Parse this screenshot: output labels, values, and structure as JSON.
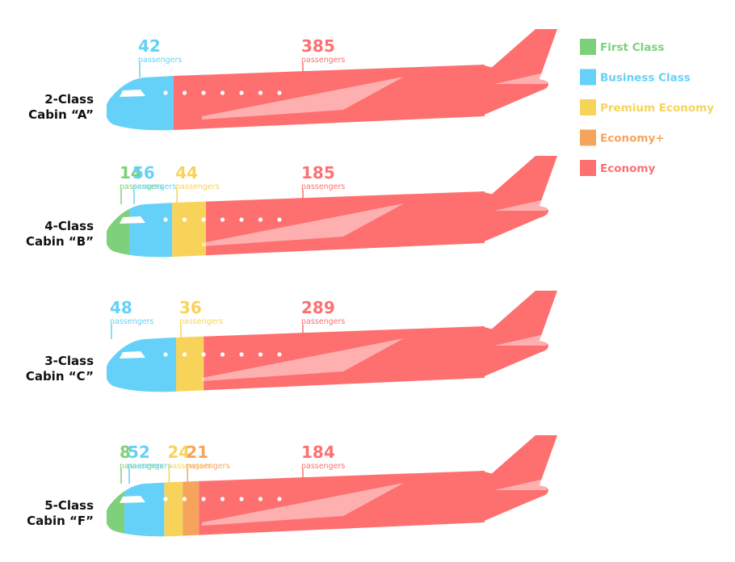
{
  "legend": {
    "items": [
      {
        "label": "First Class",
        "color": "#7ed07a"
      },
      {
        "label": "Business Class",
        "color": "#66d1f8"
      },
      {
        "label": "Premium Economy",
        "color": "#f8d35a"
      },
      {
        "label": "Economy+",
        "color": "#f6a45c"
      },
      {
        "label": "Economy",
        "color": "#fe7070"
      }
    ]
  },
  "unit_label": "passengers",
  "chart_data": {
    "type": "bar",
    "categories": [
      "First Class",
      "Business Class",
      "Premium Economy",
      "Economy+",
      "Economy"
    ],
    "planes": [
      {
        "label_line1": "2-Class",
        "label_line2": "Cabin “A”",
        "segments": [
          {
            "class": "Business Class",
            "value": 42
          },
          {
            "class": "Economy",
            "value": 385
          }
        ]
      },
      {
        "label_line1": "4-Class",
        "label_line2": "Cabin “B”",
        "segments": [
          {
            "class": "First Class",
            "value": 14
          },
          {
            "class": "Business Class",
            "value": 56
          },
          {
            "class": "Premium Economy",
            "value": 44
          },
          {
            "class": "Economy",
            "value": 185
          }
        ]
      },
      {
        "label_line1": "3-Class",
        "label_line2": "Cabin “C”",
        "segments": [
          {
            "class": "Business Class",
            "value": 48
          },
          {
            "class": "Premium Economy",
            "value": 36
          },
          {
            "class": "Economy",
            "value": 289
          }
        ]
      },
      {
        "label_line1": "5-Class",
        "label_line2": "Cabin “F”",
        "segments": [
          {
            "class": "First Class",
            "value": 8
          },
          {
            "class": "Business Class",
            "value": 52
          },
          {
            "class": "Premium Economy",
            "value": 24
          },
          {
            "class": "Economy+",
            "value": 21
          },
          {
            "class": "Economy",
            "value": 184
          }
        ]
      }
    ]
  }
}
